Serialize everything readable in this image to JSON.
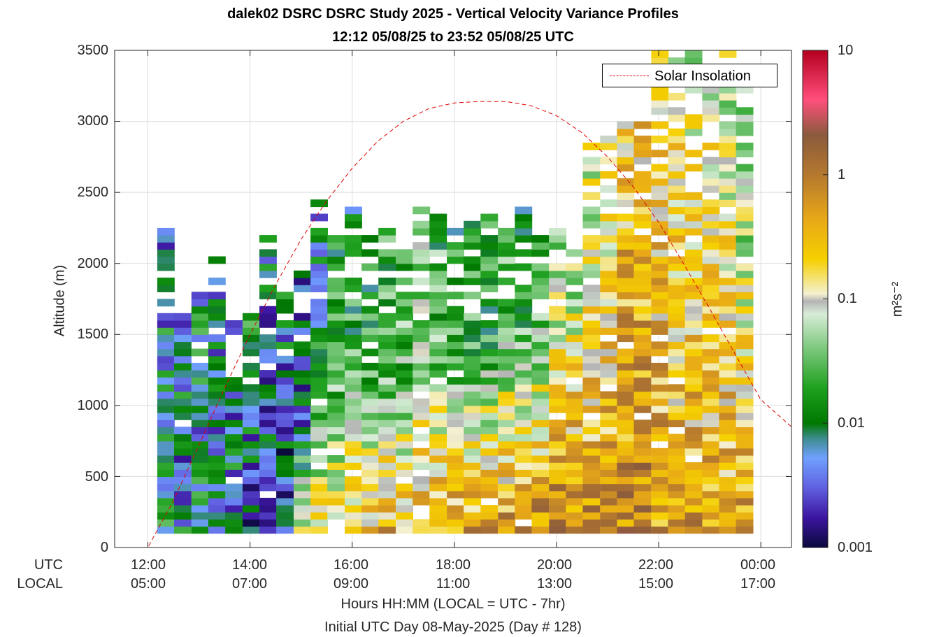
{
  "title_line1": "dalek02 DSRC DSRC Study 2025 - Vertical Velocity Variance Profiles",
  "title_line2": "12:12 05/08/25 to 23:52 05/08/25  UTC",
  "ylabel": "Altitude (m)",
  "xlabel": "Hours HH:MM  (LOCAL = UTC - 7hr)",
  "xlabel2": "Initial UTC Day 08-May-2025 (Day # 128)",
  "row_label_utc": "UTC",
  "row_label_local": "LOCAL",
  "legend_label": "Solar Insolation",
  "colorbar_unit": "m²s⁻²",
  "y_ticks": [
    "0",
    "500",
    "1000",
    "1500",
    "2000",
    "2500",
    "3000",
    "3500"
  ],
  "x_ticks_utc": [
    "12:00",
    "14:00",
    "16:00",
    "18:00",
    "20:00",
    "22:00",
    "00:00"
  ],
  "x_ticks_local": [
    "05:00",
    "07:00",
    "09:00",
    "11:00",
    "13:00",
    "15:00",
    "17:00"
  ],
  "colorbar_ticks": [
    "10",
    "1",
    "0.1",
    "0.01",
    "0.001"
  ],
  "colors": {
    "solar_line": "#e00000",
    "grid": "#dcdcdc"
  },
  "chart_data": {
    "type": "heatmap",
    "x_unit": "hours UTC",
    "xlim": [
      11.35,
      24.6
    ],
    "ylim": [
      0,
      3500
    ],
    "grid": true,
    "legend_position": "top-right",
    "colorscale": "log",
    "zlim": [
      0.001,
      10
    ],
    "bin_width_hours": 0.333,
    "bin_height_m": 50,
    "columns": [
      {
        "t": 12.35,
        "bottom": 100,
        "top": 2250,
        "sfc": 0.008,
        "peak": 0.007,
        "ppeak": 1.0,
        "jit": 0.6
      },
      {
        "t": 12.68,
        "bottom": 100,
        "top": 1800,
        "sfc": 0.006,
        "peak": 0.008,
        "ppeak": 1.0,
        "jit": 0.6
      },
      {
        "t": 13.02,
        "bottom": 100,
        "top": 1800,
        "sfc": 0.007,
        "peak": 0.009,
        "ppeak": 1.0,
        "jit": 0.6
      },
      {
        "t": 13.35,
        "bottom": 100,
        "top": 2050,
        "sfc": 0.006,
        "peak": 0.008,
        "ppeak": 1.0,
        "jit": 0.6
      },
      {
        "t": 13.68,
        "bottom": 100,
        "top": 1600,
        "sfc": 0.005,
        "peak": 0.008,
        "ppeak": 1.0,
        "jit": 0.6
      },
      {
        "t": 14.02,
        "bottom": 100,
        "top": 1650,
        "sfc": 0.004,
        "peak": 0.01,
        "ppeak": 1.0,
        "jit": 0.6
      },
      {
        "t": 14.35,
        "bottom": 100,
        "top": 2250,
        "sfc": 0.004,
        "peak": 0.007,
        "ppeak": 1.0,
        "jit": 0.6
      },
      {
        "t": 14.68,
        "bottom": 100,
        "top": 1800,
        "sfc": 0.003,
        "peak": 0.006,
        "ppeak": 1.0,
        "jit": 0.6
      },
      {
        "t": 15.02,
        "bottom": 100,
        "top": 2000,
        "sfc": 0.1,
        "peak": 0.005,
        "ppeak": 0.4,
        "jit": 0.6
      },
      {
        "t": 15.35,
        "bottom": 100,
        "top": 2450,
        "sfc": 0.2,
        "peak": 0.012,
        "ppeak": 0.5,
        "jit": 0.5
      },
      {
        "t": 15.68,
        "bottom": 100,
        "top": 2400,
        "sfc": 0.2,
        "peak": 0.03,
        "ppeak": 0.4,
        "jit": 0.5
      },
      {
        "t": 16.02,
        "bottom": 100,
        "top": 2450,
        "sfc": 0.25,
        "peak": 0.02,
        "ppeak": 0.5,
        "jit": 0.5
      },
      {
        "t": 16.35,
        "bottom": 100,
        "top": 2300,
        "sfc": 0.3,
        "peak": 0.02,
        "ppeak": 0.5,
        "jit": 0.5
      },
      {
        "t": 16.68,
        "bottom": 100,
        "top": 2250,
        "sfc": 0.4,
        "peak": 0.03,
        "ppeak": 0.5,
        "jit": 0.5
      },
      {
        "t": 17.02,
        "bottom": 100,
        "top": 2300,
        "sfc": 0.35,
        "peak": 0.03,
        "ppeak": 0.5,
        "jit": 0.5
      },
      {
        "t": 17.35,
        "bottom": 100,
        "top": 2400,
        "sfc": 0.4,
        "peak": 0.05,
        "ppeak": 0.55,
        "jit": 0.5
      },
      {
        "t": 17.68,
        "bottom": 100,
        "top": 2400,
        "sfc": 0.45,
        "peak": 0.03,
        "ppeak": 0.55,
        "jit": 0.5
      },
      {
        "t": 18.02,
        "bottom": 100,
        "top": 2350,
        "sfc": 0.5,
        "peak": 0.02,
        "ppeak": 0.6,
        "jit": 0.5
      },
      {
        "t": 18.35,
        "bottom": 100,
        "top": 2300,
        "sfc": 0.6,
        "peak": 0.02,
        "ppeak": 0.6,
        "jit": 0.5
      },
      {
        "t": 18.68,
        "bottom": 100,
        "top": 2350,
        "sfc": 0.6,
        "peak": 0.02,
        "ppeak": 0.6,
        "jit": 0.5
      },
      {
        "t": 19.02,
        "bottom": 100,
        "top": 2300,
        "sfc": 0.6,
        "peak": 0.03,
        "ppeak": 0.65,
        "jit": 0.5
      },
      {
        "t": 19.35,
        "bottom": 100,
        "top": 2400,
        "sfc": 0.6,
        "peak": 0.02,
        "ppeak": 0.65,
        "jit": 0.5
      },
      {
        "t": 19.68,
        "bottom": 100,
        "top": 2250,
        "sfc": 0.7,
        "peak": 0.03,
        "ppeak": 0.7,
        "jit": 0.5
      },
      {
        "t": 20.02,
        "bottom": 100,
        "top": 2350,
        "sfc": 1.0,
        "peak": 0.08,
        "ppeak": 0.7,
        "jit": 0.5
      },
      {
        "t": 20.35,
        "bottom": 100,
        "top": 2250,
        "sfc": 0.9,
        "peak": 0.08,
        "ppeak": 0.75,
        "jit": 0.5
      },
      {
        "t": 20.68,
        "bottom": 100,
        "top": 2900,
        "sfc": 0.6,
        "peak": 0.1,
        "ppeak": 0.75,
        "jit": 0.5
      },
      {
        "t": 21.02,
        "bottom": 100,
        "top": 2950,
        "sfc": 0.6,
        "peak": 0.1,
        "ppeak": 0.8,
        "jit": 0.5
      },
      {
        "t": 21.35,
        "bottom": 100,
        "top": 3000,
        "sfc": 0.7,
        "peak": 0.3,
        "ppeak": 0.75,
        "jit": 0.5
      },
      {
        "t": 21.68,
        "bottom": 100,
        "top": 3050,
        "sfc": 0.8,
        "peak": 0.3,
        "ppeak": 0.75,
        "jit": 0.5
      },
      {
        "t": 22.02,
        "bottom": 100,
        "top": 3500,
        "sfc": 0.5,
        "peak": 0.2,
        "ppeak": 0.8,
        "jit": 0.5
      },
      {
        "t": 22.35,
        "bottom": 100,
        "top": 3500,
        "sfc": 0.4,
        "peak": 0.15,
        "ppeak": 0.8,
        "jit": 0.5
      },
      {
        "t": 22.68,
        "bottom": 100,
        "top": 3500,
        "sfc": 0.5,
        "peak": 0.1,
        "ppeak": 0.85,
        "jit": 0.5
      },
      {
        "t": 23.02,
        "bottom": 100,
        "top": 3450,
        "sfc": 0.4,
        "peak": 0.12,
        "ppeak": 0.85,
        "jit": 0.5
      },
      {
        "t": 23.35,
        "bottom": 100,
        "top": 3500,
        "sfc": 0.45,
        "peak": 0.08,
        "ppeak": 0.85,
        "jit": 0.5
      },
      {
        "t": 23.68,
        "bottom": 100,
        "top": 3500,
        "sfc": 0.5,
        "peak": 0.03,
        "ppeak": 0.85,
        "jit": 0.5
      }
    ],
    "solar_insolation": {
      "series_name": "Solar Insolation",
      "points": [
        [
          11.35,
          0
        ],
        [
          12.0,
          0
        ],
        [
          12.5,
          330
        ],
        [
          13.0,
          720
        ],
        [
          13.5,
          1120
        ],
        [
          14.0,
          1500
        ],
        [
          14.5,
          1850
        ],
        [
          15.0,
          2170
        ],
        [
          15.5,
          2440
        ],
        [
          16.0,
          2670
        ],
        [
          16.5,
          2860
        ],
        [
          17.0,
          3000
        ],
        [
          17.5,
          3090
        ],
        [
          18.0,
          3130
        ],
        [
          18.5,
          3140
        ],
        [
          19.0,
          3140
        ],
        [
          19.5,
          3110
        ],
        [
          20.0,
          3040
        ],
        [
          20.5,
          2920
        ],
        [
          21.0,
          2750
        ],
        [
          21.5,
          2540
        ],
        [
          22.0,
          2290
        ],
        [
          22.5,
          1990
        ],
        [
          23.0,
          1680
        ],
        [
          23.5,
          1360
        ],
        [
          24.0,
          1040
        ],
        [
          24.6,
          850
        ]
      ]
    }
  }
}
